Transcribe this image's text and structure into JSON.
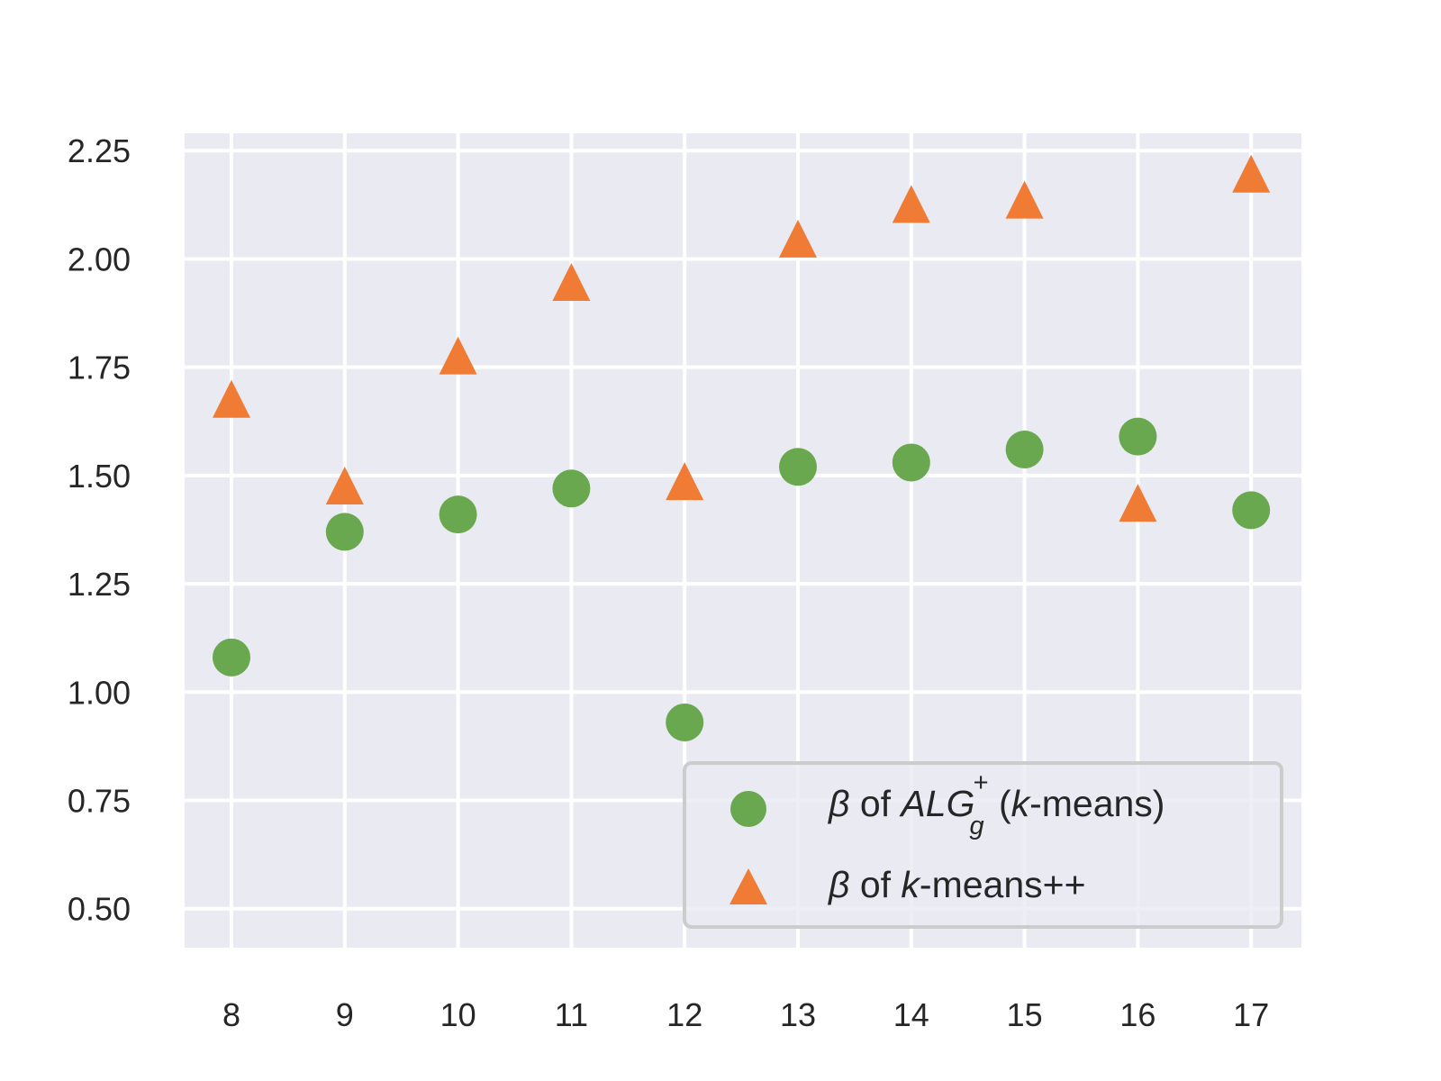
{
  "chart_data": {
    "type": "scatter",
    "x": [
      8,
      9,
      10,
      11,
      12,
      13,
      14,
      15,
      16,
      17
    ],
    "series": [
      {
        "name": "β of ALG_g^+ (k-means)",
        "marker": "circle",
        "color": "#6aa84f",
        "values": [
          1.08,
          1.37,
          1.41,
          1.47,
          0.93,
          1.52,
          1.53,
          1.56,
          1.59,
          1.42
        ]
      },
      {
        "name": "β of k-means++",
        "marker": "triangle",
        "color": "#f07b35",
        "values": [
          1.67,
          1.47,
          1.77,
          1.94,
          1.48,
          2.04,
          2.12,
          2.13,
          1.43,
          2.19
        ]
      }
    ],
    "ylim": [
      0.41,
      2.29
    ],
    "yticks": [
      "0.50",
      "0.75",
      "1.00",
      "1.25",
      "1.50",
      "1.75",
      "2.00",
      "2.25"
    ],
    "xticks": [
      "8",
      "9",
      "10",
      "11",
      "12",
      "13",
      "14",
      "15",
      "16",
      "17"
    ],
    "xlabel": "",
    "ylabel": "",
    "title": "",
    "grid": true,
    "background": "#eaeaf2",
    "legend": {
      "position": "lower-right",
      "entries": [
        {
          "beta": "β",
          "of": " of ",
          "alg": "ALG",
          "sub": "g",
          "sup": "+",
          "open": " (",
          "k": "k",
          "rest": "-means)"
        },
        {
          "beta": "β",
          "of": " of ",
          "k": "k",
          "rest": "-means++"
        }
      ]
    }
  }
}
